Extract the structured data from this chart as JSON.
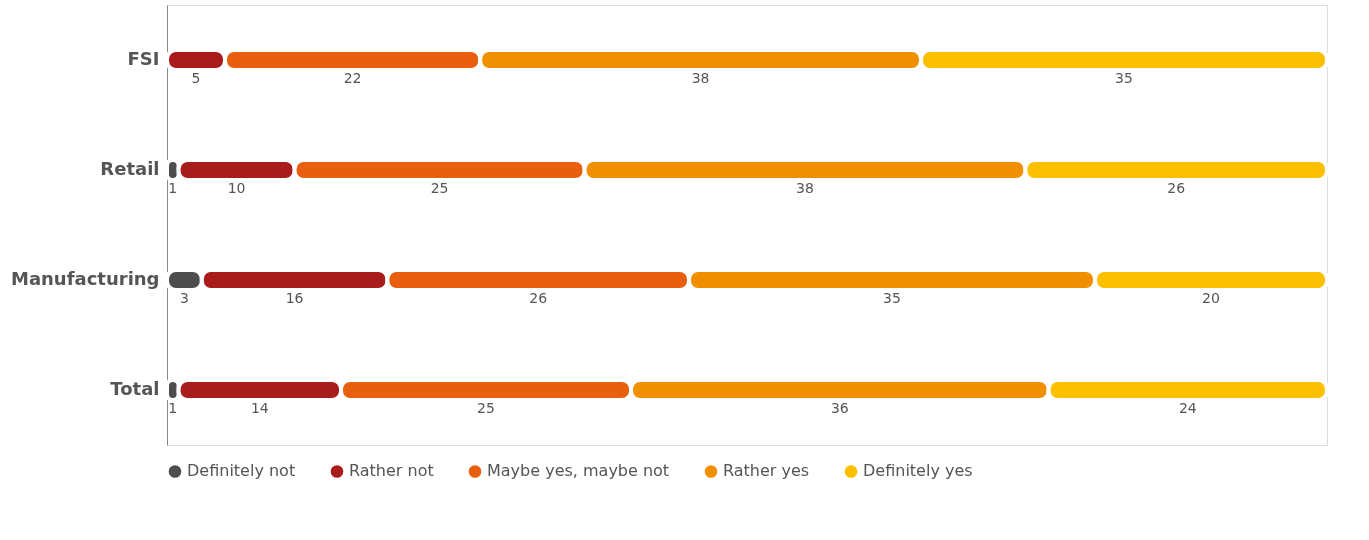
{
  "chart_data": {
    "type": "bar",
    "orientation": "horizontal",
    "stacked": true,
    "data_labels": true,
    "legend": "bottom",
    "categories": [
      "FSI",
      "Retail",
      "Manufacturing",
      "Total"
    ],
    "series": [
      {
        "name": "Definitely not",
        "color": "#4d4d4d",
        "values": [
          null,
          1,
          3,
          1
        ]
      },
      {
        "name": "Rather not",
        "color": "#a81c1c",
        "values": [
          5,
          10,
          16,
          14
        ]
      },
      {
        "name": "Maybe yes, maybe not",
        "color": "#e8600f",
        "values": [
          22,
          25,
          26,
          25
        ]
      },
      {
        "name": "Rather yes",
        "color": "#f09000",
        "values": [
          38,
          38,
          35,
          36
        ]
      },
      {
        "name": "Definitely yes",
        "color": "#fcc000",
        "values": [
          35,
          26,
          20,
          24
        ]
      }
    ]
  }
}
